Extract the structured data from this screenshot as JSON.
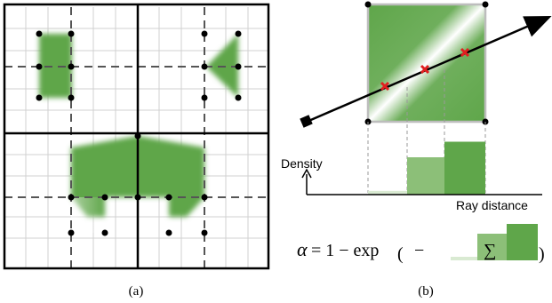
{
  "panel_a": {
    "caption": "(a)"
  },
  "panel_b": {
    "caption": "(b)",
    "density_label": "Density",
    "ray_distance_label": "Ray distance",
    "formula": {
      "alpha": "α",
      "prefix": "= 1 − exp",
      "open_paren": "(",
      "minus": "−",
      "sum": "∑",
      "close_paren": ")"
    },
    "bars": [
      {
        "name": "bar-1",
        "level": 0.06
      },
      {
        "name": "bar-2",
        "level": 0.6
      },
      {
        "name": "bar-3",
        "level": 0.85
      }
    ]
  },
  "colors": {
    "green": "#5fa64a",
    "green_light": "#8cbf78",
    "green_pale": "#d9ead2",
    "sample_point": "#e02020",
    "grid_bold": "#000000",
    "grid_dashed": "#555555",
    "grid_fine": "#d0d0d0"
  }
}
